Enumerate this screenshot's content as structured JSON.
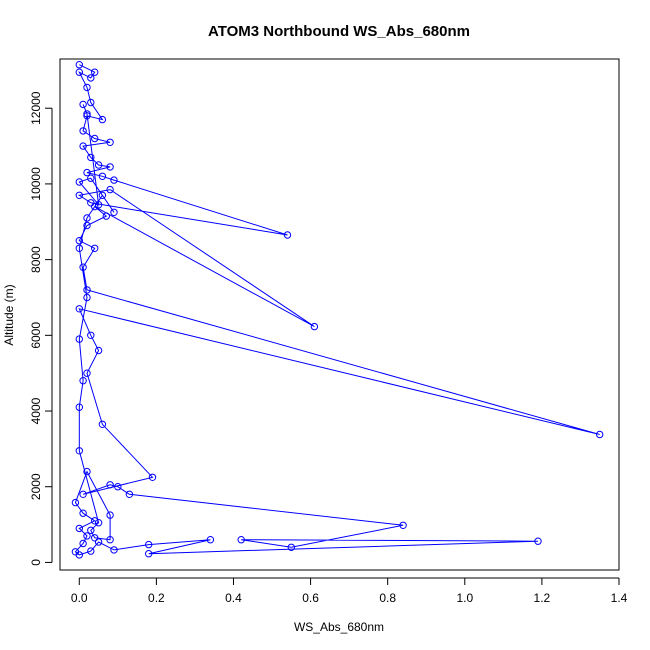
{
  "chart_data": {
    "type": "line",
    "title": "ATOM3 Northbound WS_Abs_680nm",
    "xlabel": "WS_Abs_680nm",
    "ylabel": "Altitude (m)",
    "xlim": [
      -0.05,
      1.4
    ],
    "ylim": [
      -200,
      13300
    ],
    "x_ticks": [
      0.0,
      0.2,
      0.4,
      0.6,
      0.8,
      1.0,
      1.2,
      1.4
    ],
    "x_tick_labels": [
      "0.0",
      "0.2",
      "0.4",
      "0.6",
      "0.8",
      "1.0",
      "1.2",
      "1.4"
    ],
    "y_ticks": [
      0,
      2000,
      4000,
      6000,
      8000,
      10000,
      12000
    ],
    "y_tick_labels": [
      "0",
      "2000",
      "4000",
      "6000",
      "8000",
      "10000",
      "12000"
    ],
    "grid": false,
    "legend": "none",
    "color": "#0000ff",
    "series": [
      {
        "marker": "open-circle",
        "points": [
          [
            0.0,
            13150
          ],
          [
            0.04,
            12950
          ],
          [
            0.03,
            12800
          ],
          [
            0.0,
            12950
          ],
          [
            0.02,
            12550
          ],
          [
            0.03,
            12150
          ],
          [
            0.06,
            11700
          ],
          [
            0.02,
            11800
          ],
          [
            0.01,
            11400
          ],
          [
            0.04,
            11200
          ],
          [
            0.08,
            11100
          ],
          [
            0.01,
            11000
          ],
          [
            0.03,
            10700
          ],
          [
            0.05,
            10500
          ],
          [
            0.08,
            10450
          ],
          [
            0.02,
            10300
          ],
          [
            0.06,
            10200
          ],
          [
            0.09,
            10100
          ],
          [
            0.54,
            8650
          ],
          [
            0.03,
            9500
          ],
          [
            0.0,
            9700
          ],
          [
            0.08,
            9850
          ],
          [
            0.61,
            6230
          ],
          [
            0.04,
            9400
          ],
          [
            0.07,
            9150
          ],
          [
            0.02,
            8900
          ],
          [
            0.0,
            8500
          ],
          [
            0.04,
            8300
          ],
          [
            0.01,
            7800
          ],
          [
            0.02,
            7200
          ],
          [
            1.35,
            3380
          ],
          [
            0.0,
            6700
          ],
          [
            0.03,
            6000
          ],
          [
            0.05,
            5600
          ],
          [
            0.02,
            5000
          ],
          [
            0.06,
            3650
          ],
          [
            0.19,
            2250
          ],
          [
            0.01,
            1800
          ],
          [
            0.08,
            2050
          ],
          [
            0.1,
            2000
          ],
          [
            0.13,
            1800
          ],
          [
            0.84,
            980
          ],
          [
            0.55,
            400
          ],
          [
            0.42,
            600
          ],
          [
            1.19,
            560
          ],
          [
            0.18,
            230
          ],
          [
            0.34,
            600
          ],
          [
            0.18,
            470
          ],
          [
            0.09,
            330
          ],
          [
            0.05,
            540
          ],
          [
            0.03,
            300
          ],
          [
            0.0,
            200
          ],
          [
            -0.01,
            280
          ],
          [
            0.01,
            500
          ],
          [
            0.02,
            700
          ],
          [
            0.0,
            900
          ],
          [
            0.04,
            1100
          ],
          [
            0.01,
            1300
          ],
          [
            -0.01,
            1580
          ],
          [
            0.02,
            2400
          ],
          [
            0.08,
            1250
          ],
          [
            0.08,
            600
          ],
          [
            0.04,
            650
          ],
          [
            0.03,
            850
          ],
          [
            0.05,
            1050
          ],
          [
            0.0,
            2950
          ],
          [
            0.0,
            4100
          ],
          [
            0.01,
            4800
          ],
          [
            0.0,
            5900
          ],
          [
            0.02,
            7000
          ],
          [
            0.0,
            8300
          ],
          [
            0.02,
            9100
          ],
          [
            0.06,
            9700
          ],
          [
            0.09,
            9250
          ],
          [
            0.03,
            10150
          ],
          [
            0.0,
            10050
          ],
          [
            0.05,
            9450
          ],
          [
            0.02,
            11850
          ],
          [
            0.01,
            12100
          ]
        ]
      }
    ]
  }
}
